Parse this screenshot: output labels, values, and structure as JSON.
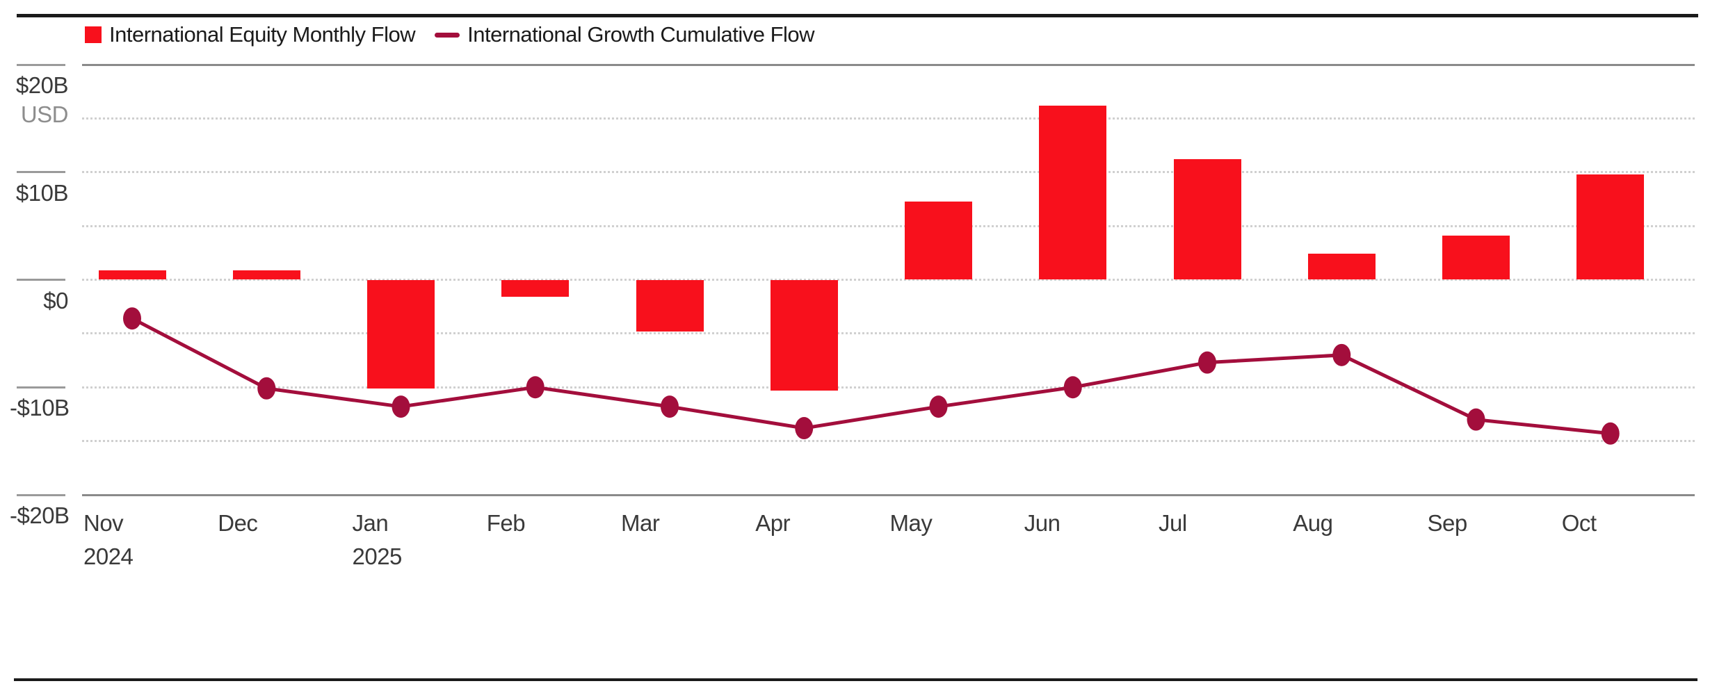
{
  "page": {
    "background": "#ffffff",
    "rule_color": "#1b1b1b"
  },
  "legend": {
    "items": [
      {
        "swatch": "square",
        "color": "#F8101C",
        "label": "International Equity Monthly Flow"
      },
      {
        "swatch": "dash",
        "color": "#A30E3C",
        "label": "International Growth Cumulative Flow"
      }
    ]
  },
  "y_axis": {
    "unit": "USD",
    "tick_labels": [
      "$20B",
      "$10B",
      "$0",
      "-$10B",
      "-$20B"
    ],
    "tick_values": [
      20,
      10,
      0,
      -10,
      -20
    ]
  },
  "x_axis": {
    "months": [
      "Nov",
      "Dec",
      "Jan",
      "Feb",
      "Mar",
      "Apr",
      "May",
      "Jun",
      "Jul",
      "Aug",
      "Sep",
      "Oct"
    ],
    "years": [
      {
        "label": "2024",
        "month_index": 0
      },
      {
        "label": "2025",
        "month_index": 2
      }
    ]
  },
  "chart_data": {
    "type": "bar+line",
    "title": "",
    "categories": [
      "Nov 2024",
      "Dec 2024",
      "Jan 2025",
      "Feb 2025",
      "Mar 2025",
      "Apr 2025",
      "May 2025",
      "Jun 2025",
      "Jul 2025",
      "Aug 2025",
      "Sep 2025",
      "Oct 2025"
    ],
    "series": [
      {
        "name": "International Equity Monthly Flow",
        "type": "bar",
        "color": "#F8101C",
        "unit": "billions USD",
        "values": [
          0.9,
          0.9,
          -10.1,
          -1.6,
          -4.8,
          -10.3,
          7.3,
          16.2,
          11.2,
          2.4,
          4.1,
          9.8
        ]
      },
      {
        "name": "International Growth Cumulative Flow",
        "type": "line",
        "color": "#A30E3C",
        "unit": "billions USD",
        "values": [
          -3.6,
          -10.1,
          -11.8,
          -10.0,
          -11.8,
          -13.8,
          -11.8,
          -10.0,
          -7.7,
          -7.0,
          -13.0,
          -14.3
        ]
      }
    ],
    "ylabel": "USD",
    "ylim": [
      -20,
      20
    ],
    "gridline_step": 5,
    "labeled_gridlines": [
      20,
      10,
      0,
      -10,
      -20
    ],
    "grid": "horizontal dotted, solid top and bottom",
    "legend_position": "top-left"
  }
}
